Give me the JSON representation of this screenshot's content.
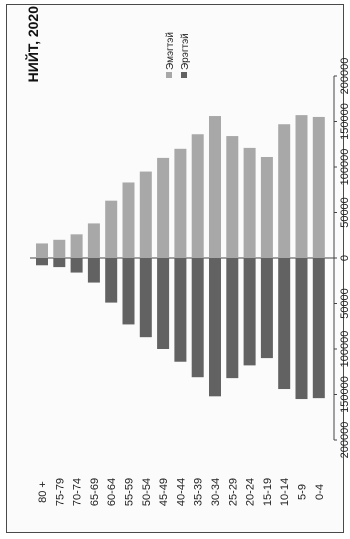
{
  "chart_data": {
    "type": "bar",
    "orientation": "population-pyramid",
    "title": "НИЙТ, 2020",
    "categories": [
      "80 +",
      "75-79",
      "70-74",
      "65-69",
      "60-64",
      "55-59",
      "50-54",
      "45-49",
      "40-44",
      "35-39",
      "30-34",
      "25-29",
      "20-24",
      "15-19",
      "10-14",
      "5-9",
      "0-4"
    ],
    "series": [
      {
        "name": "Эмэгтэй",
        "color": "#a8a8a8",
        "direction": "positive",
        "values": [
          16000,
          20000,
          26000,
          38000,
          63000,
          83000,
          95000,
          110000,
          120000,
          136000,
          156000,
          134000,
          121000,
          111000,
          147000,
          157000,
          155000
        ]
      },
      {
        "name": "Эрэгтэй",
        "color": "#626262",
        "direction": "negative",
        "values": [
          8000,
          10000,
          16000,
          27000,
          49000,
          73000,
          87000,
          100000,
          114000,
          131000,
          152000,
          132000,
          118000,
          110000,
          144000,
          155000,
          154000
        ]
      }
    ],
    "value_axis": {
      "ticks": [
        -200000,
        -150000,
        -100000,
        -50000,
        0,
        50000,
        100000,
        150000,
        200000
      ],
      "tick_labels": [
        "200000",
        "150000",
        "100000",
        "50000",
        "0",
        "50000",
        "100000",
        "150000",
        "200000"
      ],
      "range": [
        -200000,
        200000
      ]
    },
    "grid": false,
    "legend_position": "top-right"
  }
}
